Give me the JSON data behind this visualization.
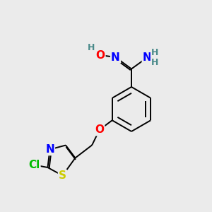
{
  "background_color": "#ebebeb",
  "bond_color": "#000000",
  "atom_colors": {
    "N": "#0000ff",
    "O": "#ff0000",
    "S": "#cccc00",
    "Cl": "#00bb00",
    "C": "#000000",
    "H": "#4a8a8a"
  },
  "font_size": 11,
  "font_size_small": 9,
  "lw": 1.4
}
